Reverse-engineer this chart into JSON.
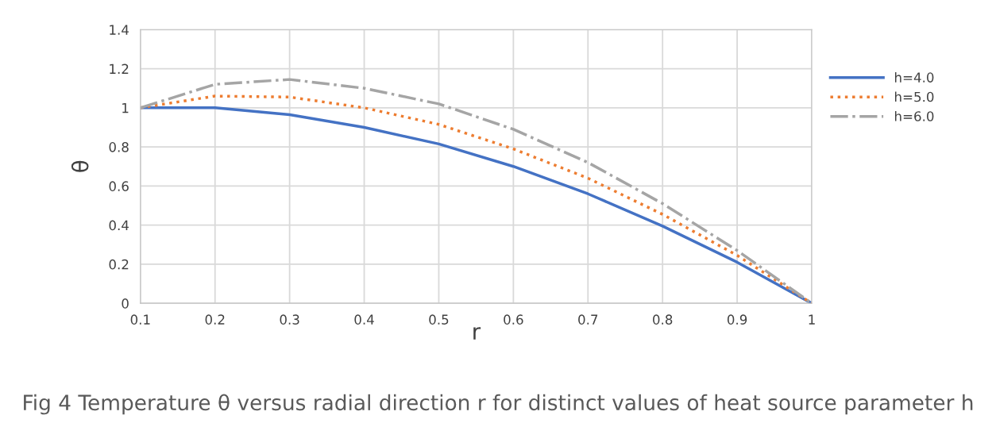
{
  "chart_data": {
    "type": "line",
    "title": "Fig 4 Temperature θ versus radial direction r for distinct values of heat source parameter h",
    "xlabel": "r",
    "ylabel": "θ",
    "x": [
      0.1,
      0.2,
      0.3,
      0.4,
      0.5,
      0.6,
      0.7,
      0.8,
      0.9,
      1.0
    ],
    "series": [
      {
        "name": "h=4.0",
        "color": "#4472c4",
        "line_style": "solid",
        "values": [
          1.0,
          1.0,
          0.965,
          0.9,
          0.815,
          0.7,
          0.56,
          0.395,
          0.21,
          0.0
        ]
      },
      {
        "name": "h=5.0",
        "color": "#ed7d31",
        "line_style": "dotted",
        "values": [
          1.0,
          1.06,
          1.055,
          1.0,
          0.915,
          0.79,
          0.64,
          0.455,
          0.245,
          0.0
        ]
      },
      {
        "name": "h=6.0",
        "color": "#a5a5a5",
        "line_style": "dashdot",
        "values": [
          1.0,
          1.12,
          1.145,
          1.1,
          1.02,
          0.89,
          0.72,
          0.51,
          0.27,
          0.0
        ]
      }
    ],
    "xlim": [
      0.1,
      1.0
    ],
    "xticks": [
      0.1,
      0.2,
      0.3,
      0.4,
      0.5,
      0.6,
      0.7,
      0.8,
      0.9,
      1
    ],
    "ylim": [
      0,
      1.4
    ],
    "yticks": [
      0,
      0.2,
      0.4,
      0.6,
      0.8,
      1,
      1.2,
      1.4
    ],
    "grid": true,
    "legend": "right",
    "marker": "none"
  }
}
